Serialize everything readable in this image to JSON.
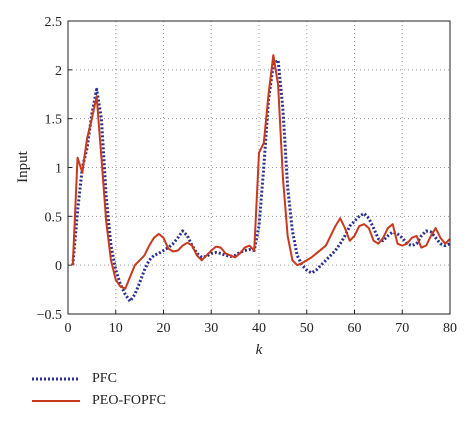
{
  "chart_data": {
    "type": "line",
    "title": "",
    "xlabel": "k",
    "ylabel": "Input",
    "xlim": [
      0,
      80
    ],
    "ylim": [
      -0.5,
      2.5
    ],
    "xticks": [
      0,
      10,
      20,
      30,
      40,
      50,
      60,
      70,
      80
    ],
    "yticks": [
      -0.5,
      0,
      0.5,
      1,
      1.5,
      2,
      2.5
    ],
    "xtick_labels": [
      "0",
      "10",
      "20",
      "30",
      "40",
      "50",
      "60",
      "70",
      "80"
    ],
    "ytick_labels": [
      "−0.5",
      "0",
      "0.5",
      "1",
      "1.5",
      "2",
      "2.5"
    ],
    "grid": true,
    "legend_position": "below-left",
    "series": [
      {
        "name": "PFC",
        "color": "#2b2f8f",
        "style": "dotted",
        "x": [
          1,
          2,
          3,
          4,
          5,
          6,
          7,
          8,
          9,
          10,
          11,
          12,
          13,
          14,
          15,
          16,
          17,
          18,
          19,
          20,
          21,
          22,
          23,
          24,
          25,
          26,
          27,
          28,
          29,
          30,
          31,
          32,
          33,
          34,
          35,
          36,
          37,
          38,
          39,
          40,
          41,
          42,
          43,
          44,
          45,
          46,
          47,
          48,
          49,
          50,
          51,
          52,
          53,
          54,
          55,
          56,
          57,
          58,
          59,
          60,
          61,
          62,
          63,
          64,
          65,
          66,
          67,
          68,
          69,
          70,
          71,
          72,
          73,
          74,
          75,
          76,
          77,
          78,
          79,
          80
        ],
        "values": [
          0.0,
          0.55,
          1.0,
          1.2,
          1.55,
          1.8,
          1.5,
          0.7,
          0.2,
          -0.05,
          -0.2,
          -0.3,
          -0.37,
          -0.3,
          -0.18,
          -0.05,
          0.05,
          0.1,
          0.12,
          0.15,
          0.18,
          0.22,
          0.28,
          0.35,
          0.3,
          0.2,
          0.12,
          0.08,
          0.09,
          0.12,
          0.13,
          0.12,
          0.1,
          0.09,
          0.1,
          0.13,
          0.15,
          0.16,
          0.15,
          0.4,
          1.0,
          1.7,
          2.05,
          2.1,
          1.6,
          0.8,
          0.35,
          0.1,
          0.0,
          -0.05,
          -0.08,
          -0.05,
          0.0,
          0.05,
          0.1,
          0.15,
          0.22,
          0.3,
          0.4,
          0.45,
          0.5,
          0.53,
          0.48,
          0.38,
          0.27,
          0.25,
          0.3,
          0.34,
          0.32,
          0.28,
          0.22,
          0.2,
          0.22,
          0.3,
          0.35,
          0.34,
          0.28,
          0.22,
          0.2,
          0.22
        ]
      },
      {
        "name": "PEO-FOPFC",
        "color": "#c8391d",
        "style": "solid",
        "x": [
          1,
          2,
          3,
          4,
          5,
          6,
          7,
          8,
          9,
          10,
          11,
          12,
          13,
          14,
          15,
          16,
          17,
          18,
          19,
          20,
          21,
          22,
          23,
          24,
          25,
          26,
          27,
          28,
          29,
          30,
          31,
          32,
          33,
          34,
          35,
          36,
          37,
          38,
          39,
          40,
          41,
          42,
          43,
          44,
          45,
          46,
          47,
          48,
          49,
          50,
          51,
          52,
          53,
          54,
          55,
          56,
          57,
          58,
          59,
          60,
          61,
          62,
          63,
          64,
          65,
          66,
          67,
          68,
          69,
          70,
          71,
          72,
          73,
          74,
          75,
          76,
          77,
          78,
          79,
          80
        ],
        "values": [
          0.0,
          1.1,
          0.95,
          1.3,
          1.5,
          1.73,
          1.1,
          0.45,
          0.05,
          -0.15,
          -0.22,
          -0.24,
          -0.12,
          0.0,
          0.05,
          0.1,
          0.2,
          0.28,
          0.32,
          0.28,
          0.17,
          0.14,
          0.15,
          0.2,
          0.23,
          0.2,
          0.1,
          0.05,
          0.1,
          0.15,
          0.19,
          0.18,
          0.12,
          0.1,
          0.08,
          0.12,
          0.18,
          0.2,
          0.15,
          1.15,
          1.25,
          1.75,
          2.15,
          1.85,
          0.9,
          0.3,
          0.05,
          0.0,
          0.02,
          0.05,
          0.08,
          0.12,
          0.16,
          0.2,
          0.3,
          0.4,
          0.48,
          0.38,
          0.25,
          0.3,
          0.4,
          0.42,
          0.38,
          0.25,
          0.22,
          0.28,
          0.38,
          0.42,
          0.22,
          0.2,
          0.22,
          0.28,
          0.3,
          0.18,
          0.2,
          0.3,
          0.38,
          0.28,
          0.22,
          0.27
        ]
      }
    ]
  }
}
